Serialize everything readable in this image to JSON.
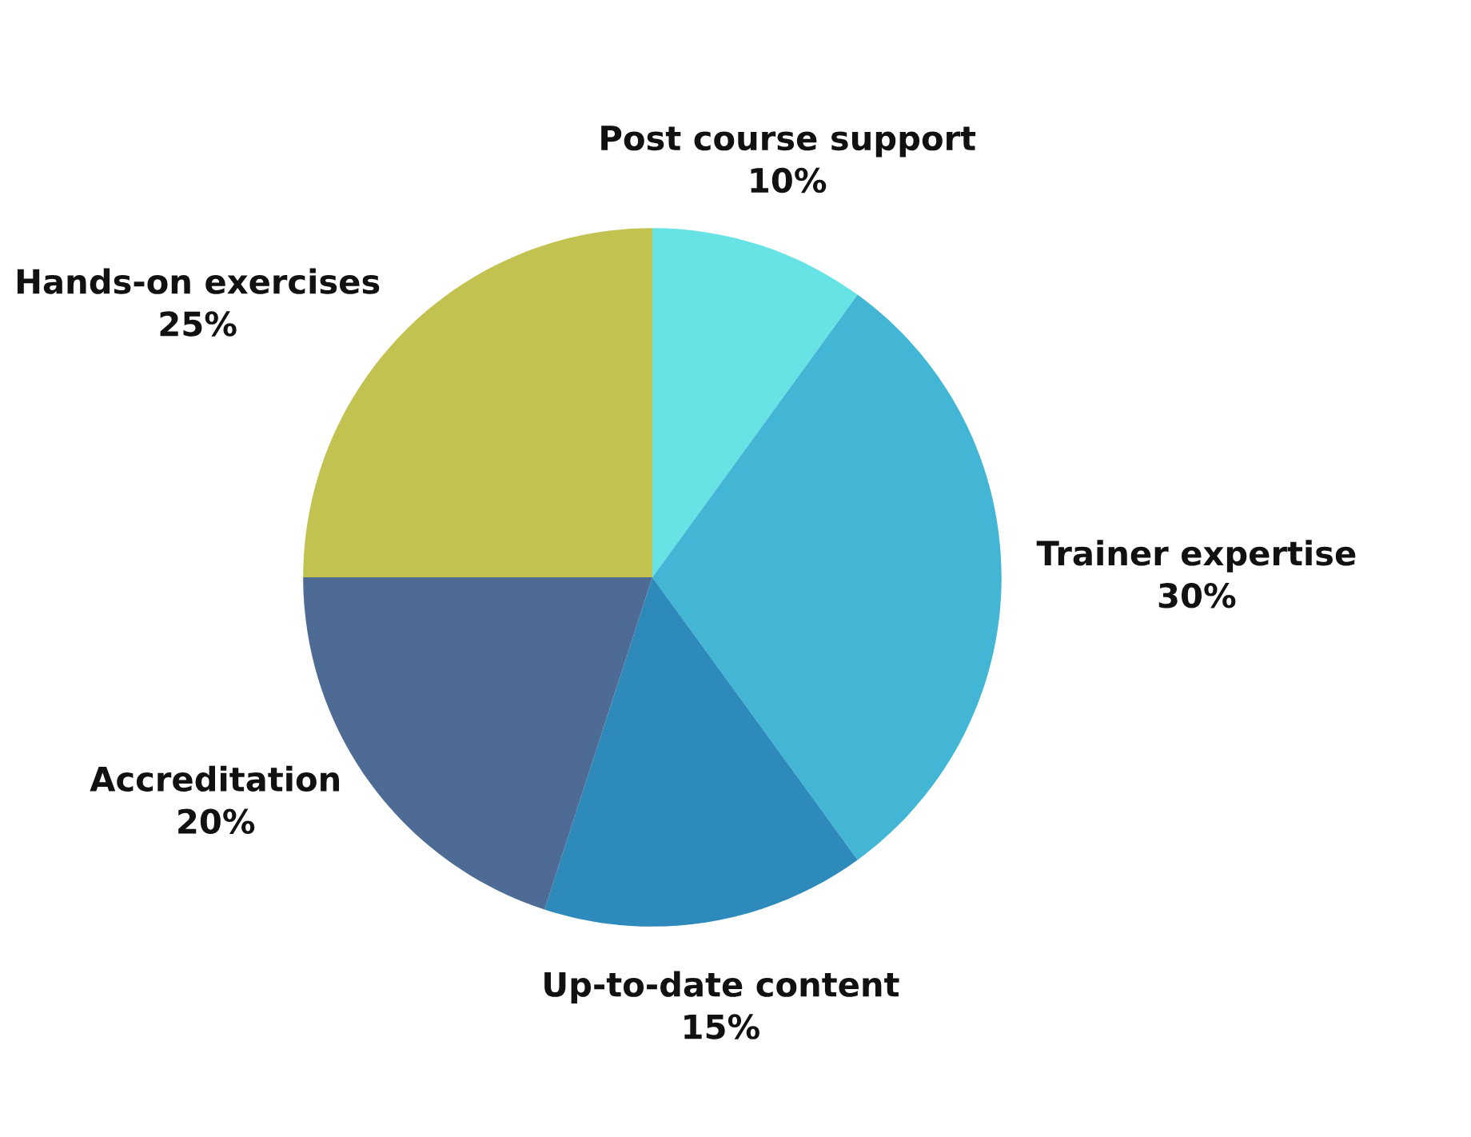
{
  "chart_data": {
    "type": "pie",
    "categories": [
      "Post course support",
      "Trainer expertise",
      "Up-to-date content",
      "Accreditation",
      "Hands-on exercises"
    ],
    "values": [
      10,
      30,
      15,
      20,
      25
    ],
    "value_labels": [
      "10%",
      "30%",
      "15%",
      "20%",
      "25%"
    ],
    "colors": [
      "#67e3e6",
      "#43b6d5",
      "#2e8aba",
      "#4e6b96",
      "#c1c24f"
    ],
    "legend": false
  }
}
